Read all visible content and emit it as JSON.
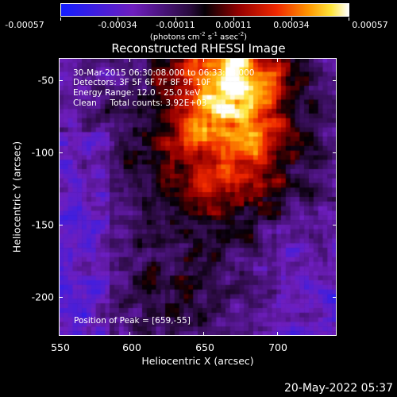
{
  "colorbar": {
    "labels": [
      "-0.00057",
      "-0.00034",
      "-0.00011",
      "0.00011",
      "0.00034",
      "0.00057"
    ],
    "units_text": "(photons cm",
    "units_sup1": "-2",
    "units_mid": " s",
    "units_sup2": "-1",
    "units_mid2": " asec",
    "units_sup3": "-2",
    "units_end": ")"
  },
  "title": "Reconstructed RHESSI Image",
  "info": {
    "line1": "30-Mar-2015 06:30:08.000 to 06:33:08.000",
    "line2": "Detectors: 3F 5F 6F 7F 8F 9F 10F",
    "line3": "Energy Range: 12.0 - 25.0 keV",
    "line4": "Clean     Total counts: 3.92E+03"
  },
  "peak": "Position of Peak = [659,-55]",
  "x_axis": {
    "title": "Heliocentric X (arcsec)",
    "ticks": [
      "550",
      "600",
      "650",
      "700"
    ]
  },
  "y_axis": {
    "title": "Heliocentric Y (arcsec)",
    "ticks": [
      "-50",
      "-100",
      "-150",
      "-200"
    ]
  },
  "timestamp": "20-May-2022 05:37"
}
